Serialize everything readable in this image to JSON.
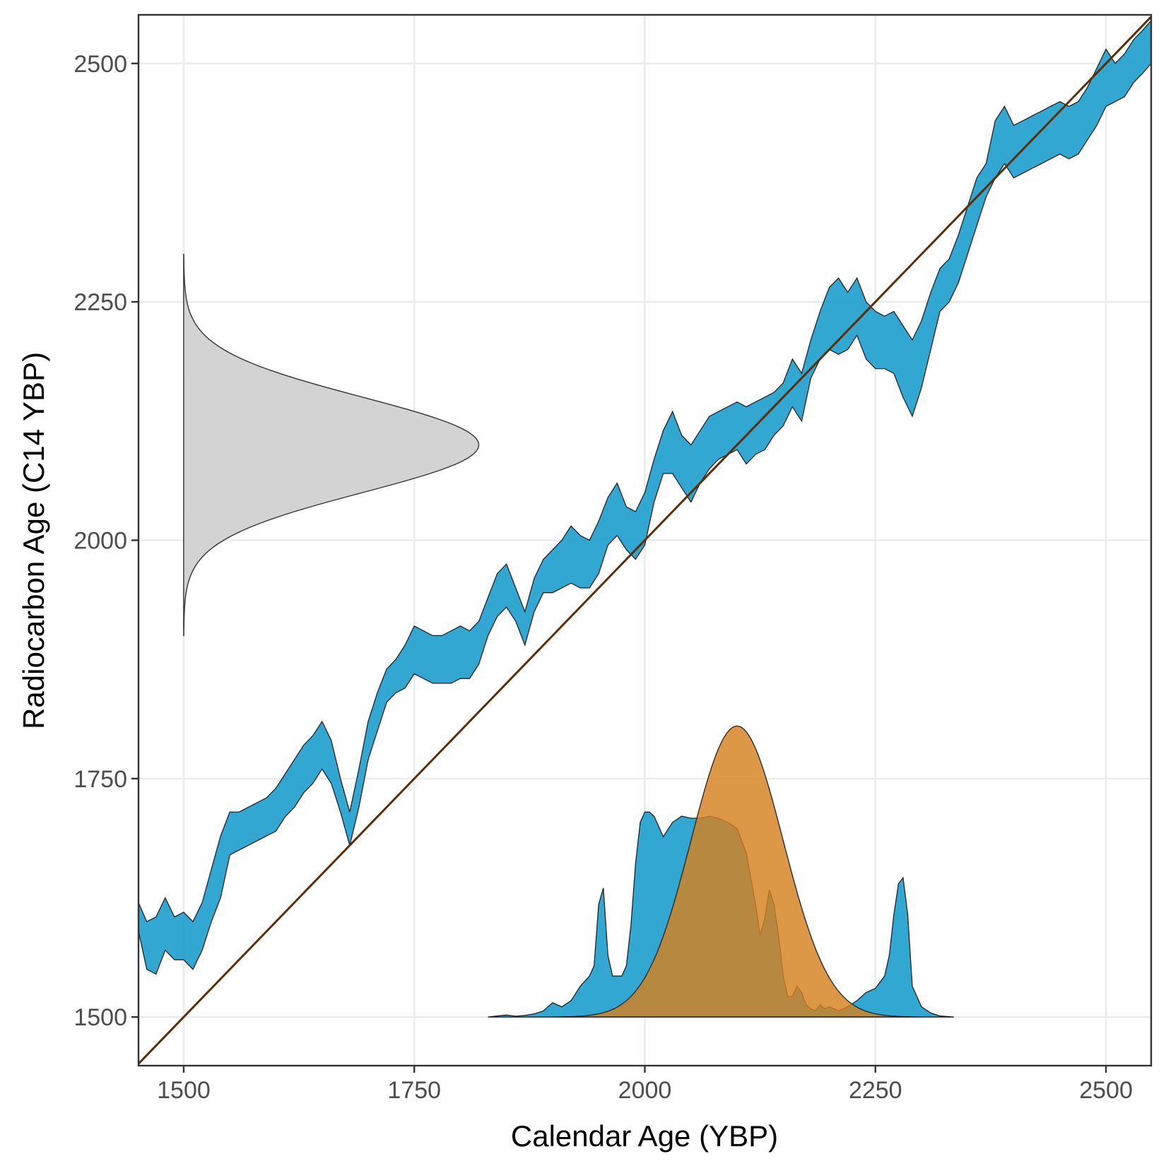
{
  "chart_data": {
    "type": "area",
    "title": "",
    "xlabel": "Calendar Age (YBP)",
    "ylabel": "Radiocarbon Age (C14 YBP)",
    "xlim": [
      1451,
      2549
    ],
    "ylim": [
      1449,
      2551
    ],
    "x_ticks": [
      1500,
      1750,
      2000,
      2250,
      2500
    ],
    "y_ticks": [
      1500,
      1750,
      2000,
      2250,
      2500
    ],
    "grid": true,
    "legend": "none",
    "colors": {
      "calibration_band": "#1f9fce",
      "calendar_density_calibration": "#1f9fce",
      "calendar_density_normal": "#d5811f",
      "radiocarbon_density": "#d3d3d3",
      "identity_line": "#5c2e0a",
      "outline": "#222222"
    },
    "series": [
      {
        "kind": "calibration-band",
        "x": [
          1451,
          1460,
          1470,
          1480,
          1490,
          1500,
          1510,
          1520,
          1530,
          1540,
          1550,
          1560,
          1570,
          1580,
          1590,
          1600,
          1610,
          1620,
          1630,
          1640,
          1650,
          1660,
          1670,
          1680,
          1690,
          1700,
          1710,
          1720,
          1730,
          1740,
          1750,
          1760,
          1770,
          1780,
          1790,
          1800,
          1810,
          1820,
          1830,
          1840,
          1850,
          1860,
          1870,
          1880,
          1890,
          1900,
          1910,
          1920,
          1930,
          1940,
          1950,
          1960,
          1970,
          1980,
          1990,
          2000,
          2010,
          2020,
          2030,
          2040,
          2050,
          2060,
          2070,
          2080,
          2090,
          2100,
          2110,
          2120,
          2130,
          2140,
          2150,
          2160,
          2170,
          2180,
          2190,
          2200,
          2210,
          2220,
          2230,
          2240,
          2250,
          2260,
          2270,
          2280,
          2290,
          2300,
          2310,
          2320,
          2330,
          2340,
          2350,
          2360,
          2370,
          2380,
          2390,
          2400,
          2410,
          2420,
          2430,
          2440,
          2450,
          2460,
          2470,
          2480,
          2490,
          2500,
          2510,
          2520,
          2530,
          2540,
          2549
        ],
        "upper": [
          1620,
          1600,
          1605,
          1625,
          1605,
          1610,
          1600,
          1620,
          1655,
          1690,
          1715,
          1715,
          1720,
          1725,
          1730,
          1740,
          1755,
          1770,
          1785,
          1795,
          1810,
          1790,
          1750,
          1715,
          1760,
          1810,
          1840,
          1865,
          1875,
          1890,
          1910,
          1905,
          1900,
          1900,
          1905,
          1910,
          1905,
          1915,
          1940,
          1965,
          1975,
          1950,
          1925,
          1960,
          1980,
          1990,
          2000,
          2015,
          2005,
          2000,
          2020,
          2045,
          2060,
          2035,
          2030,
          2050,
          2085,
          2115,
          2135,
          2110,
          2100,
          2115,
          2130,
          2135,
          2140,
          2145,
          2140,
          2145,
          2150,
          2155,
          2165,
          2190,
          2175,
          2210,
          2240,
          2265,
          2275,
          2260,
          2275,
          2250,
          2240,
          2235,
          2240,
          2225,
          2210,
          2230,
          2260,
          2285,
          2295,
          2320,
          2350,
          2380,
          2395,
          2440,
          2455,
          2435,
          2440,
          2445,
          2450,
          2455,
          2460,
          2455,
          2460,
          2475,
          2495,
          2515,
          2500,
          2510,
          2525,
          2535,
          2545
        ],
        "lower": [
          1590,
          1550,
          1545,
          1570,
          1560,
          1560,
          1550,
          1570,
          1600,
          1625,
          1670,
          1675,
          1680,
          1685,
          1690,
          1695,
          1710,
          1720,
          1735,
          1745,
          1760,
          1745,
          1715,
          1680,
          1720,
          1770,
          1800,
          1830,
          1840,
          1845,
          1860,
          1855,
          1850,
          1850,
          1850,
          1855,
          1855,
          1870,
          1900,
          1920,
          1930,
          1915,
          1890,
          1925,
          1945,
          1945,
          1950,
          1955,
          1950,
          1950,
          1965,
          1995,
          2005,
          1990,
          1980,
          1995,
          2040,
          2070,
          2070,
          2055,
          2040,
          2060,
          2075,
          2085,
          2090,
          2095,
          2080,
          2090,
          2095,
          2110,
          2120,
          2140,
          2125,
          2170,
          2190,
          2200,
          2195,
          2200,
          2215,
          2190,
          2180,
          2180,
          2175,
          2150,
          2130,
          2160,
          2200,
          2240,
          2250,
          2270,
          2300,
          2330,
          2360,
          2380,
          2395,
          2380,
          2385,
          2390,
          2395,
          2400,
          2405,
          2400,
          2405,
          2420,
          2435,
          2455,
          2460,
          2465,
          2480,
          2490,
          2500
        ]
      },
      {
        "kind": "calendar-density-calibration",
        "x": [
          1830,
          1840,
          1850,
          1860,
          1870,
          1880,
          1890,
          1900,
          1910,
          1920,
          1930,
          1940,
          1945,
          1950,
          1955,
          1960,
          1965,
          1970,
          1975,
          1980,
          1985,
          1990,
          1995,
          2000,
          2005,
          2010,
          2020,
          2030,
          2040,
          2050,
          2060,
          2070,
          2080,
          2090,
          2100,
          2110,
          2120,
          2125,
          2130,
          2135,
          2140,
          2145,
          2150,
          2155,
          2160,
          2165,
          2170,
          2175,
          2180,
          2185,
          2190,
          2195,
          2200,
          2210,
          2220,
          2230,
          2240,
          2250,
          2260,
          2265,
          2270,
          2275,
          2280,
          2285,
          2290,
          2300,
          2310,
          2320,
          2335
        ],
        "density": [
          0,
          0.005,
          0.01,
          0.004,
          0.008,
          0.015,
          0.03,
          0.07,
          0.05,
          0.08,
          0.15,
          0.2,
          0.25,
          0.55,
          0.63,
          0.3,
          0.2,
          0.2,
          0.2,
          0.25,
          0.45,
          0.75,
          0.95,
          1.0,
          1.0,
          0.98,
          0.88,
          0.95,
          0.98,
          0.97,
          0.97,
          0.98,
          0.97,
          0.95,
          0.92,
          0.8,
          0.55,
          0.4,
          0.48,
          0.62,
          0.55,
          0.4,
          0.2,
          0.1,
          0.1,
          0.15,
          0.12,
          0.06,
          0.04,
          0.03,
          0.06,
          0.04,
          0.05,
          0.03,
          0.05,
          0.08,
          0.12,
          0.14,
          0.2,
          0.3,
          0.5,
          0.65,
          0.68,
          0.5,
          0.15,
          0.05,
          0.02,
          0.005,
          0
        ]
      },
      {
        "kind": "calendar-density-normal",
        "mean": 2100,
        "sd": 50,
        "x_range": [
          1900,
          2300
        ],
        "peak_density": 1.42
      },
      {
        "kind": "radiocarbon-density",
        "mean": 2100,
        "sd": 50,
        "y_range": [
          1900,
          2300
        ],
        "base_x": 1500,
        "peak_x": 1820
      },
      {
        "kind": "identity-line",
        "x": [
          1451,
          2549
        ],
        "y": [
          1451,
          2549
        ]
      }
    ]
  }
}
